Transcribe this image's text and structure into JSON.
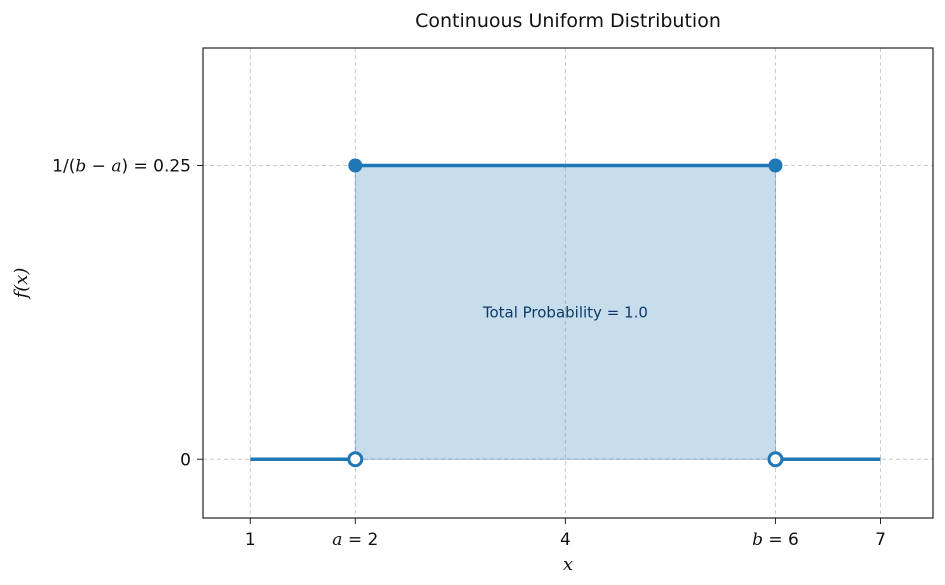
{
  "chart_data": {
    "type": "line",
    "title": "Continuous Uniform Distribution",
    "xlabel": "x",
    "ylabel": "f(x)",
    "xlim": [
      0.55,
      7.5
    ],
    "ylim": [
      -0.05,
      0.35
    ],
    "grid": true,
    "x_ticks": [
      {
        "value": 1,
        "label": "1"
      },
      {
        "value": 2,
        "label": "a = 2"
      },
      {
        "value": 4,
        "label": "4"
      },
      {
        "value": 6,
        "label": "b = 6"
      },
      {
        "value": 7,
        "label": "7"
      }
    ],
    "y_ticks": [
      {
        "value": 0,
        "label": "0"
      },
      {
        "value": 0.25,
        "label": "1/(b − a) = 0.25"
      }
    ],
    "series": [
      {
        "x": [
          1,
          2
        ],
        "y": [
          0,
          0
        ]
      },
      {
        "x": [
          2,
          6
        ],
        "y": [
          0.25,
          0.25
        ]
      },
      {
        "x": [
          6,
          7
        ],
        "y": [
          0,
          0
        ]
      }
    ],
    "closed_points": [
      {
        "x": 2,
        "y": 0.25
      },
      {
        "x": 6,
        "y": 0.25
      }
    ],
    "open_points": [
      {
        "x": 2,
        "y": 0
      },
      {
        "x": 6,
        "y": 0
      }
    ],
    "shaded_region": {
      "x": [
        2,
        6
      ],
      "y": [
        0,
        0.25
      ]
    },
    "annotation": {
      "x": 4,
      "y": 0.125,
      "text": "Total Probability = 1.0"
    },
    "colors": {
      "line": "#1f77b4",
      "fill": "#1f77b4",
      "annotation": "#0d3b66",
      "grid": "#cccccc"
    }
  }
}
